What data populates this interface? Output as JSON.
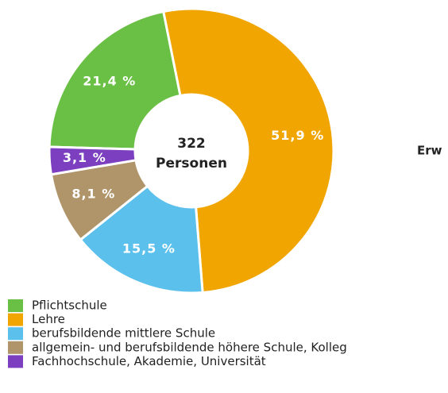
{
  "chart_data": {
    "type": "donut",
    "categories": [
      "Pflichtschule",
      "Lehre",
      "berufsbildende mittlere Schule",
      "allgemein- und berufsbildende höhere Schule, Kolleg",
      "Fachhochschule, Akademie, Universität"
    ],
    "values": [
      21.4,
      51.9,
      15.5,
      8.1,
      3.1
    ],
    "value_labels": [
      "21,4 %",
      "51,9 %",
      "15,5 %",
      "8,1 %",
      "3,1 %"
    ],
    "colors": [
      "#6abf45",
      "#f0a500",
      "#5bc0eb",
      "#b0956a",
      "#7b3fbf"
    ],
    "total": 322,
    "total_label": "Personen",
    "annotation": "Erw"
  }
}
